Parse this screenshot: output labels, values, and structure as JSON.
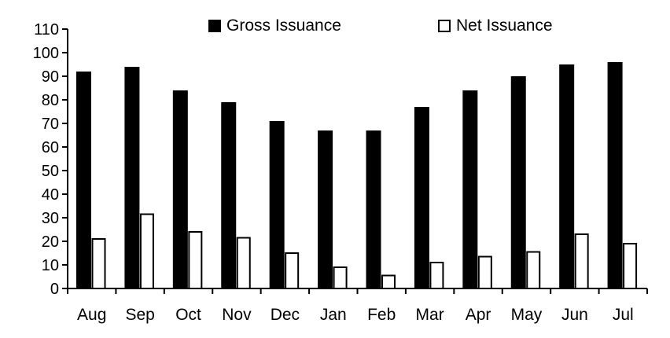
{
  "chart_data": {
    "type": "bar",
    "title": "",
    "xlabel": "",
    "ylabel": "",
    "categories": [
      "Aug",
      "Sep",
      "Oct",
      "Nov",
      "Dec",
      "Jan",
      "Feb",
      "Mar",
      "Apr",
      "May",
      "Jun",
      "Jul"
    ],
    "series": [
      {
        "name": "Gross Issuance",
        "fill": "#000000",
        "stroke": "#000000",
        "values": [
          92,
          94,
          84,
          79,
          71,
          67,
          67,
          77,
          84,
          90,
          95,
          96
        ]
      },
      {
        "name": "Net Issuance",
        "fill": "#ffffff",
        "stroke": "#000000",
        "values": [
          21,
          31.5,
          24,
          21.5,
          15,
          9,
          5.5,
          11,
          13.5,
          15.5,
          23,
          19
        ]
      }
    ],
    "ylim": [
      0,
      110
    ],
    "ytick_step": 10,
    "ytick_labels": [
      "0",
      "10",
      "20",
      "30",
      "40",
      "50",
      "60",
      "70",
      "80",
      "90",
      "100",
      "110"
    ],
    "grid": false,
    "legend_position": "top"
  },
  "colors": {
    "axis": "#000000",
    "text": "#000000",
    "background": "#ffffff"
  }
}
